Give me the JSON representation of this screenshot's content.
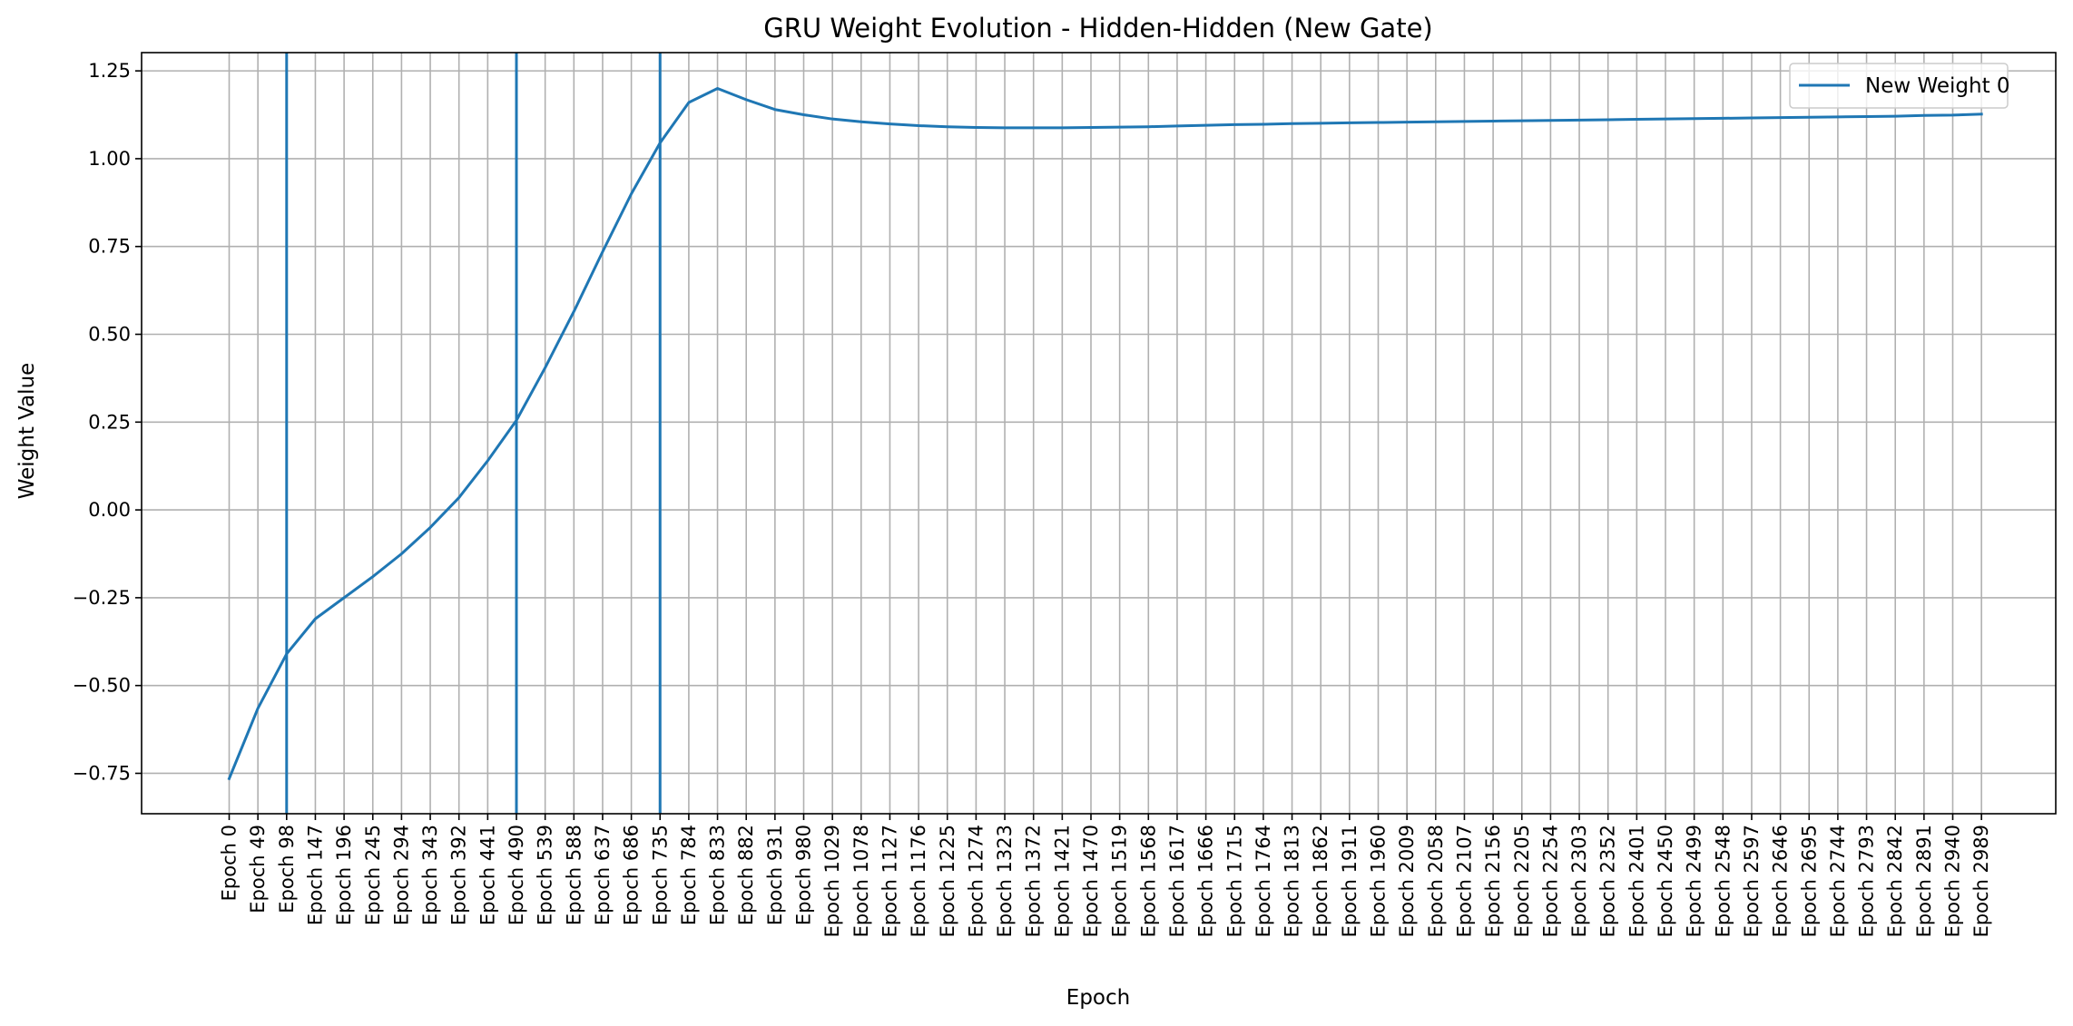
{
  "chart_data": {
    "type": "line",
    "title": "GRU Weight Evolution - Hidden-Hidden (New Gate)",
    "xlabel": "Epoch",
    "ylabel": "Weight Value",
    "categories": [
      "Epoch 0",
      "Epoch 49",
      "Epoch 98",
      "Epoch 147",
      "Epoch 196",
      "Epoch 245",
      "Epoch 294",
      "Epoch 343",
      "Epoch 392",
      "Epoch 441",
      "Epoch 490",
      "Epoch 539",
      "Epoch 588",
      "Epoch 637",
      "Epoch 686",
      "Epoch 735",
      "Epoch 784",
      "Epoch 833",
      "Epoch 882",
      "Epoch 931",
      "Epoch 980",
      "Epoch 1029",
      "Epoch 1078",
      "Epoch 1127",
      "Epoch 1176",
      "Epoch 1225",
      "Epoch 1274",
      "Epoch 1323",
      "Epoch 1372",
      "Epoch 1421",
      "Epoch 1470",
      "Epoch 1519",
      "Epoch 1568",
      "Epoch 1617",
      "Epoch 1666",
      "Epoch 1715",
      "Epoch 1764",
      "Epoch 1813",
      "Epoch 1862",
      "Epoch 1911",
      "Epoch 1960",
      "Epoch 2009",
      "Epoch 2058",
      "Epoch 2107",
      "Epoch 2156",
      "Epoch 2205",
      "Epoch 2254",
      "Epoch 2303",
      "Epoch 2352",
      "Epoch 2401",
      "Epoch 2450",
      "Epoch 2499",
      "Epoch 2548",
      "Epoch 2597",
      "Epoch 2646",
      "Epoch 2695",
      "Epoch 2744",
      "Epoch 2793",
      "Epoch 2842",
      "Epoch 2891",
      "Epoch 2940",
      "Epoch 2989"
    ],
    "series": [
      {
        "name": "New Weight 0",
        "color": "#1f77b4",
        "values": [
          -0.765,
          -0.565,
          -0.41,
          -0.31,
          -0.25,
          -0.19,
          -0.125,
          -0.05,
          0.035,
          0.14,
          0.255,
          0.405,
          0.565,
          0.735,
          0.9,
          1.045,
          1.16,
          1.2,
          1.168,
          1.14,
          1.125,
          1.113,
          1.105,
          1.099,
          1.094,
          1.091,
          1.089,
          1.088,
          1.088,
          1.088,
          1.089,
          1.09,
          1.091,
          1.093,
          1.095,
          1.097,
          1.098,
          1.1,
          1.101,
          1.102,
          1.103,
          1.104,
          1.105,
          1.106,
          1.107,
          1.108,
          1.109,
          1.11,
          1.111,
          1.112,
          1.113,
          1.114,
          1.115,
          1.116,
          1.117,
          1.118,
          1.119,
          1.12,
          1.121,
          1.123,
          1.124,
          1.127
        ]
      }
    ],
    "vertical_lines": [
      "Epoch 98",
      "Epoch 490",
      "Epoch 735"
    ],
    "yticks": [
      -0.75,
      -0.5,
      -0.25,
      0.0,
      0.25,
      0.5,
      0.75,
      1.0,
      1.25
    ],
    "ytick_labels": [
      "−0.75",
      "−0.50",
      "−0.25",
      "0.00",
      "0.25",
      "0.50",
      "0.75",
      "1.00",
      "1.25"
    ],
    "ylim": [
      -0.865,
      1.302
    ],
    "grid": true,
    "legend_position": "top-right"
  }
}
